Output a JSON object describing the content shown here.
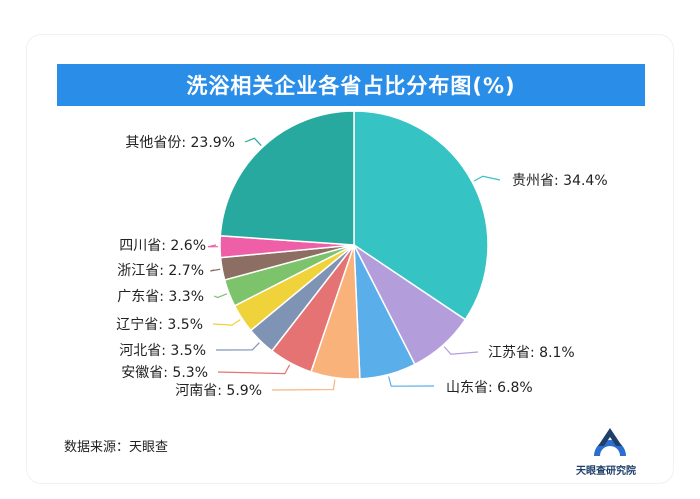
{
  "title": "洗浴相关企业各省占比分布图(%)",
  "source": "数据来源：天眼查",
  "brand": "天眼查研究院",
  "chart_data": {
    "type": "pie",
    "title": "洗浴相关企业各省占比分布图(%)",
    "slices": [
      {
        "name": "贵州省",
        "value": 34.4,
        "label": "贵州省: 34.4%",
        "color": "#35c3c3"
      },
      {
        "name": "江苏省",
        "value": 8.1,
        "label": "江苏省: 8.1%",
        "color": "#b39ddb"
      },
      {
        "name": "山东省",
        "value": 6.8,
        "label": "山东省: 6.8%",
        "color": "#5aaeea"
      },
      {
        "name": "河南省",
        "value": 5.9,
        "label": "河南省: 5.9%",
        "color": "#f9b27a"
      },
      {
        "name": "安徽省",
        "value": 5.3,
        "label": "安徽省: 5.3%",
        "color": "#e57373"
      },
      {
        "name": "河北省",
        "value": 3.5,
        "label": "河北省: 3.5%",
        "color": "#7f93b5"
      },
      {
        "name": "辽宁省",
        "value": 3.5,
        "label": "辽宁省: 3.5%",
        "color": "#f0d23a"
      },
      {
        "name": "广东省",
        "value": 3.3,
        "label": "广东省: 3.3%",
        "color": "#7cc36b"
      },
      {
        "name": "浙江省",
        "value": 2.7,
        "label": "浙江省: 2.7%",
        "color": "#8d6e63"
      },
      {
        "name": "四川省",
        "value": 2.6,
        "label": "四川省: 2.6%",
        "color": "#ef5fa8"
      },
      {
        "name": "其他省份",
        "value": 23.9,
        "label": "其他省份: 23.9%",
        "color": "#27a9a0"
      }
    ]
  }
}
